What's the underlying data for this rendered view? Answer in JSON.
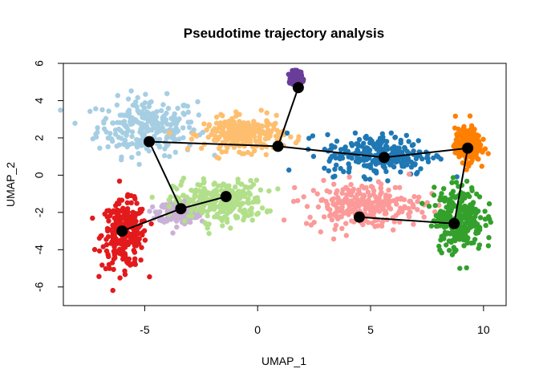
{
  "chart_data": {
    "type": "scatter",
    "title": "Pseudotime trajectory analysis",
    "xlabel": "UMAP_1",
    "ylabel": "UMAP_2",
    "xlim": [
      -8.6,
      11.0
    ],
    "ylim": [
      -7.0,
      6.0
    ],
    "xticks": [
      -5,
      0,
      5,
      10
    ],
    "yticks": [
      -6,
      -4,
      -2,
      0,
      2,
      4,
      6
    ],
    "xtick_labels": [
      "-5",
      "0",
      "5",
      "10"
    ],
    "ytick_labels": [
      "-6",
      "-4",
      "-2",
      "0",
      "2",
      "4",
      "6"
    ],
    "grid": false,
    "legend": "none",
    "clusters": [
      {
        "color": "#a6cee3",
        "center": [
          -4.9,
          2.6
        ],
        "spread": [
          2.0,
          1.4
        ]
      },
      {
        "color": "#e31a1c",
        "center": [
          -5.9,
          -3.2
        ],
        "spread": [
          0.9,
          1.6
        ]
      },
      {
        "color": "#cab2d6",
        "center": [
          -3.5,
          -2.0
        ],
        "spread": [
          0.8,
          0.5
        ]
      },
      {
        "color": "#b2df8a",
        "center": [
          -1.7,
          -1.4
        ],
        "spread": [
          1.8,
          1.0
        ]
      },
      {
        "color": "#fdbf6f",
        "center": [
          -0.6,
          2.2
        ],
        "spread": [
          1.6,
          0.8
        ]
      },
      {
        "color": "#6a3d9a",
        "center": [
          1.7,
          5.2
        ],
        "spread": [
          0.2,
          0.3
        ]
      },
      {
        "color": "#1f78b4",
        "center": [
          5.4,
          1.1
        ],
        "spread": [
          2.2,
          1.0
        ]
      },
      {
        "color": "#fb9a99",
        "center": [
          4.7,
          -1.6
        ],
        "spread": [
          2.3,
          1.1
        ]
      },
      {
        "color": "#ff7f00",
        "center": [
          9.3,
          1.6
        ],
        "spread": [
          0.5,
          0.8
        ]
      },
      {
        "color": "#33a02c",
        "center": [
          8.9,
          -2.3
        ],
        "spread": [
          1.0,
          1.6
        ]
      }
    ],
    "trajectory": {
      "color": "#000000",
      "nodes": [
        {
          "x": -6.0,
          "y": -3.0
        },
        {
          "x": -3.4,
          "y": -1.8
        },
        {
          "x": -1.4,
          "y": -1.15
        },
        {
          "x": -4.8,
          "y": 1.8
        },
        {
          "x": 0.9,
          "y": 1.55
        },
        {
          "x": 1.8,
          "y": 4.7
        },
        {
          "x": 5.6,
          "y": 0.95
        },
        {
          "x": 9.3,
          "y": 1.45
        },
        {
          "x": 8.7,
          "y": -2.6
        },
        {
          "x": 4.5,
          "y": -2.25
        }
      ],
      "edges": [
        [
          0,
          1
        ],
        [
          1,
          2
        ],
        [
          1,
          3
        ],
        [
          3,
          4
        ],
        [
          4,
          5
        ],
        [
          4,
          6
        ],
        [
          6,
          7
        ],
        [
          7,
          8
        ],
        [
          8,
          9
        ]
      ]
    }
  }
}
